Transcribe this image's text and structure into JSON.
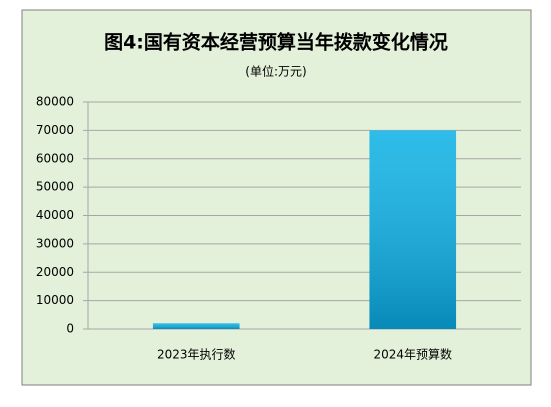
{
  "chart_data": {
    "type": "bar",
    "title": "图4:国有资本经营预算当年拨款变化情况",
    "subtitle": "(单位:万元)",
    "categories": [
      "2023年执行数",
      "2024年预算数"
    ],
    "values": [
      2000,
      70000
    ],
    "color": "#0ab0e4",
    "ylim": [
      0,
      80000
    ],
    "yticks": [
      0,
      10000,
      20000,
      30000,
      40000,
      50000,
      60000,
      70000,
      80000
    ],
    "grid": true
  }
}
